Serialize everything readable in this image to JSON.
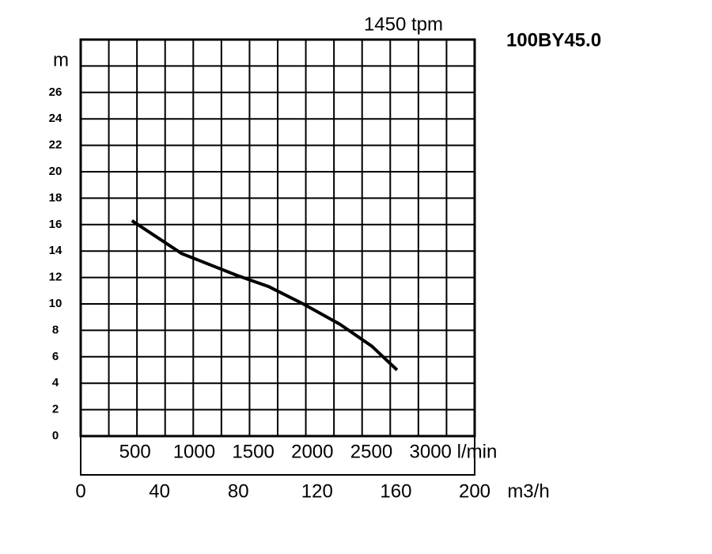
{
  "chart_data": {
    "type": "line",
    "title": "100BY45.0",
    "subtitle": "1450 tpm",
    "y_label": "m",
    "x_label": "m3/h",
    "x2_label": "l/min",
    "xlim": [
      0,
      200
    ],
    "xticks": [
      0,
      40,
      80,
      120,
      160,
      200
    ],
    "x_grid_divisions": 14,
    "ylim": [
      0,
      30
    ],
    "yticks": [
      0,
      2,
      4,
      6,
      8,
      10,
      12,
      14,
      16,
      18,
      20,
      22,
      24,
      26
    ],
    "ygrid": [
      0,
      2,
      4,
      6,
      8,
      10,
      12,
      14,
      16,
      18,
      20,
      22,
      24,
      26,
      28,
      30
    ],
    "x2lim": [
      0,
      3333.3
    ],
    "x2ticks": [
      500,
      1000,
      1500,
      2000,
      2500,
      3000
    ],
    "grid": true,
    "series": [
      {
        "name": "100BY45.0",
        "color": "#000000",
        "x": [
          26,
          51.4,
          79.5,
          95.6,
          113.6,
          131.7,
          147.8,
          160.6
        ],
        "values": [
          16.3,
          13.8,
          12.15,
          11.3,
          9.95,
          8.45,
          6.8,
          5.0
        ]
      }
    ]
  }
}
